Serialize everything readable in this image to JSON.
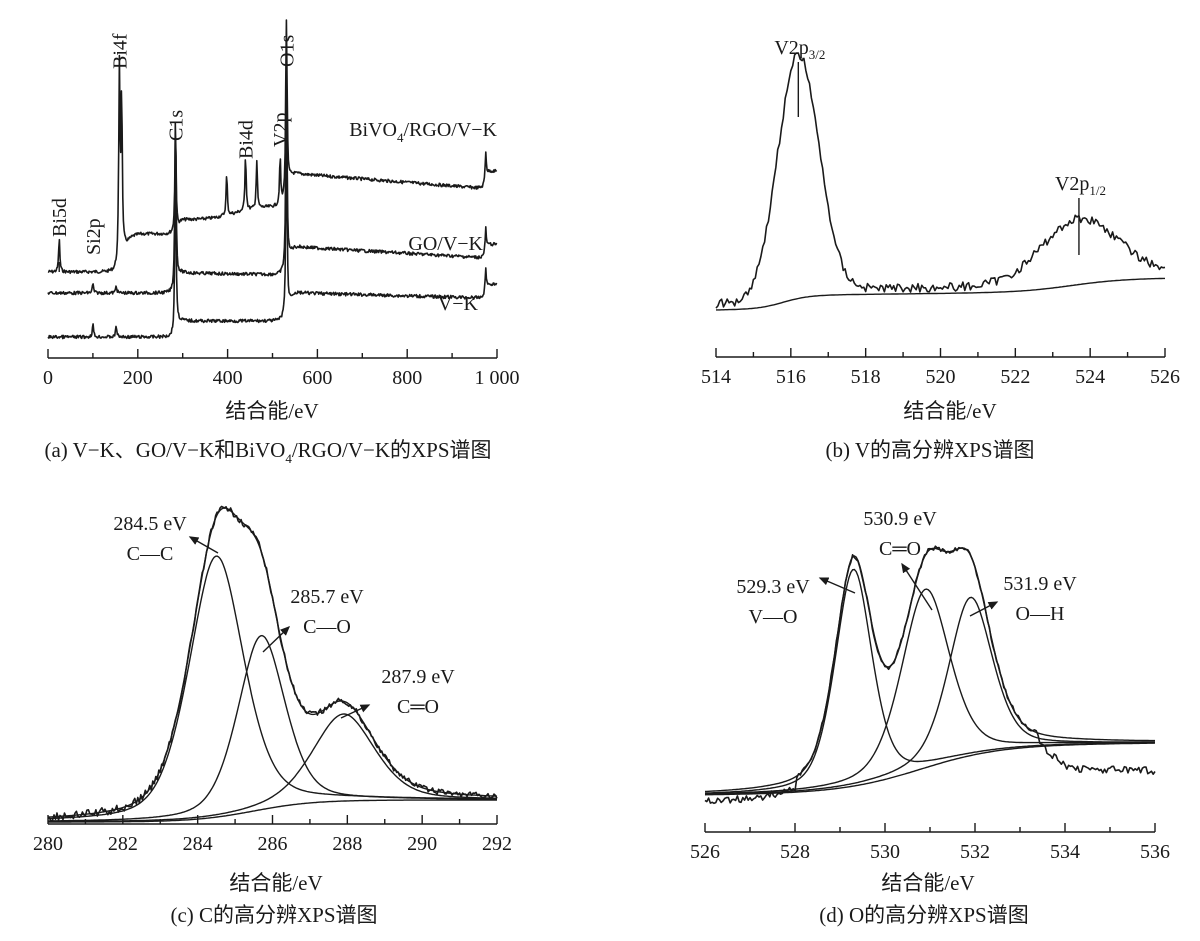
{
  "chart_data": [
    {
      "id": "a",
      "type": "line",
      "caption": "(a) V−K、GO/V−K和BiVO",
      "caption_sub": "4",
      "caption_tail": "/RGO/V−K的XPS谱图",
      "xlabel": "结合能/eV",
      "ylabel": "",
      "xlim": [
        0,
        1000
      ],
      "xticks": [
        0,
        200,
        400,
        600,
        800,
        1000
      ],
      "xtick_labels": [
        "0",
        "200",
        "400",
        "600",
        "800",
        "1 000"
      ],
      "minor_step": 100,
      "series": [
        {
          "name": "BiVO4/RGO/V−K",
          "label_main": "BiVO",
          "label_sub": "4",
          "label_tail": "/RGO/V−K",
          "peaks": [
            [
              25,
              0.18
            ],
            [
              159,
              1.0
            ],
            [
              164,
              0.82
            ],
            [
              284,
              0.55
            ],
            [
              398,
              0.22
            ],
            [
              440,
              0.3
            ],
            [
              465,
              0.25
            ],
            [
              517,
              0.25
            ],
            [
              531,
              1.05
            ],
            [
              975,
              0.15
            ]
          ]
        },
        {
          "name": "GO/V−K",
          "label_main": "GO/V−K",
          "peaks": [
            [
              100,
              0.05
            ],
            [
              152,
              0.04
            ],
            [
              284,
              0.95
            ],
            [
              531,
              1.1
            ],
            [
              975,
              0.12
            ]
          ]
        },
        {
          "name": "V−K",
          "label_main": "V−K",
          "peaks": [
            [
              100,
              0.07
            ],
            [
              152,
              0.06
            ],
            [
              284,
              0.95
            ],
            [
              531,
              1.0
            ],
            [
              975,
              0.12
            ]
          ]
        }
      ],
      "peak_labels": [
        {
          "text": "Bi5d",
          "x": 25
        },
        {
          "text": "Si2p",
          "x": 100
        },
        {
          "text": "Bi4f",
          "x": 159
        },
        {
          "text": "C1s",
          "x": 284
        },
        {
          "text": "Bi4d",
          "x": 440
        },
        {
          "text": "V2p",
          "x": 517
        },
        {
          "text": "O1s",
          "x": 531
        }
      ]
    },
    {
      "id": "b",
      "type": "line",
      "caption": "(b) V的高分辨XPS谱图",
      "xlabel": "结合能/eV",
      "ylabel": "",
      "xlim": [
        514,
        526
      ],
      "xticks": [
        514,
        516,
        518,
        520,
        522,
        524,
        526
      ],
      "xtick_labels": [
        "514",
        "516",
        "518",
        "520",
        "522",
        "524",
        "526"
      ],
      "minor_step": 1,
      "series": [
        {
          "name": "raw",
          "peaks": [
            [
              516.2,
              1.0,
              0.55
            ],
            [
              523.7,
              0.32,
              0.9
            ]
          ]
        },
        {
          "name": "background"
        }
      ],
      "peak_labels": [
        {
          "text": "V2p",
          "sub": "3/2",
          "x": 516.2
        },
        {
          "text": "V2p",
          "sub": "1/2",
          "x": 523.7
        }
      ]
    },
    {
      "id": "c",
      "type": "line",
      "caption": "(c) C的高分辨XPS谱图",
      "xlabel": "结合能/eV",
      "ylabel": "",
      "xlim": [
        280,
        292
      ],
      "xticks": [
        280,
        282,
        284,
        286,
        288,
        290,
        292
      ],
      "xtick_labels": [
        "280",
        "282",
        "284",
        "286",
        "288",
        "290",
        "292"
      ],
      "minor_step": 1,
      "series": [
        {
          "name": "C—C",
          "center": 284.5,
          "height": 0.9,
          "width": 0.75
        },
        {
          "name": "C—O",
          "center": 285.7,
          "height": 0.6,
          "width": 0.65
        },
        {
          "name": "C═O",
          "center": 287.9,
          "height": 0.3,
          "width": 0.85
        }
      ],
      "annotations": [
        {
          "energy": "284.5 eV",
          "bond": "C—C",
          "x": 284.5
        },
        {
          "energy": "285.7 eV",
          "bond": "C—O",
          "x": 285.7
        },
        {
          "energy": "287.9 eV",
          "bond": "C═O",
          "x": 287.9
        }
      ]
    },
    {
      "id": "d",
      "type": "line",
      "caption": "(d) O的高分辨XPS谱图",
      "xlabel": "结合能/eV",
      "ylabel": "",
      "xlim": [
        526,
        536
      ],
      "xticks": [
        526,
        528,
        530,
        532,
        534,
        536
      ],
      "xtick_labels": [
        "526",
        "528",
        "530",
        "532",
        "534",
        "536"
      ],
      "minor_step": 1,
      "series": [
        {
          "name": "V—O",
          "center": 529.3,
          "height": 0.85,
          "width": 0.42
        },
        {
          "name": "C═O",
          "center": 530.9,
          "height": 0.7,
          "width": 0.55
        },
        {
          "name": "O—H",
          "center": 531.9,
          "height": 0.62,
          "width": 0.5
        }
      ],
      "annotations": [
        {
          "energy": "529.3 eV",
          "bond": "V—O",
          "x": 529.3
        },
        {
          "energy": "530.9 eV",
          "bond": "C═O",
          "x": 530.9
        },
        {
          "energy": "531.9 eV",
          "bond": "O—H",
          "x": 531.9
        }
      ]
    }
  ]
}
